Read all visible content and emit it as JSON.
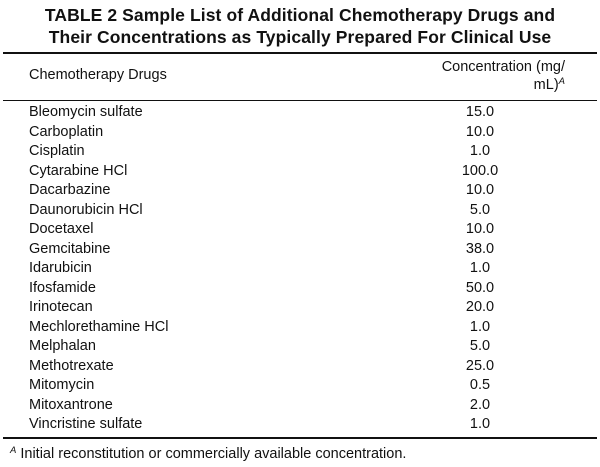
{
  "title": {
    "line1": "TABLE 2 Sample List of Additional Chemotherapy Drugs and",
    "line2": "Their Concentrations as Typically Prepared For Clinical Use"
  },
  "table": {
    "headers": {
      "drug": "Chemotherapy Drugs",
      "concentration_line1": "Concentration (mg/",
      "concentration_line2": "mL)",
      "concentration_note_marker": "A"
    },
    "rows": [
      {
        "drug": "Bleomycin sulfate",
        "concentration": "15.0"
      },
      {
        "drug": "Carboplatin",
        "concentration": "10.0"
      },
      {
        "drug": "Cisplatin",
        "concentration": "1.0"
      },
      {
        "drug": "Cytarabine HCl",
        "concentration": "100.0"
      },
      {
        "drug": "Dacarbazine",
        "concentration": "10.0"
      },
      {
        "drug": "Daunorubicin HCl",
        "concentration": "5.0"
      },
      {
        "drug": "Docetaxel",
        "concentration": "10.0"
      },
      {
        "drug": "Gemcitabine",
        "concentration": "38.0"
      },
      {
        "drug": "Idarubicin",
        "concentration": "1.0"
      },
      {
        "drug": "Ifosfamide",
        "concentration": "50.0"
      },
      {
        "drug": "Irinotecan",
        "concentration": "20.0"
      },
      {
        "drug": "Mechlorethamine HCl",
        "concentration": "1.0"
      },
      {
        "drug": "Melphalan",
        "concentration": "5.0"
      },
      {
        "drug": "Methotrexate",
        "concentration": "25.0"
      },
      {
        "drug": "Mitomycin",
        "concentration": "0.5"
      },
      {
        "drug": "Mitoxantrone",
        "concentration": "2.0"
      },
      {
        "drug": "Vincristine sulfate",
        "concentration": "1.0"
      }
    ]
  },
  "footnote": {
    "marker": "A",
    "text": " Initial reconstitution or commercially available concentration."
  }
}
